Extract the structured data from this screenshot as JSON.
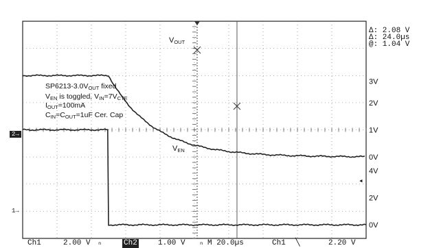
{
  "readout": {
    "delta_v": "Δ: 2.08 V",
    "delta_t": "Δ: 24.0µs",
    "at_v": "@: 1.04 V"
  },
  "status_bar": {
    "ch1": "Ch1",
    "ch1_scale": "2.00 V",
    "ch1_bw": "ₙ",
    "ch2": "Ch2",
    "ch2_scale": "1.00 V",
    "ch2_bw": "ₙ",
    "timebase": "M 20.0µs",
    "trigger_src": "Ch1",
    "trigger_slope": "╲",
    "trigger_level": "2.20 V"
  },
  "markers": {
    "ch2_ground": "2",
    "ch1_ground": "1→",
    "trigger_arrow": "◂"
  },
  "annotation": {
    "line1_main": "SP6213-3.0V",
    "line1_sub": "OUT",
    "line1_tail": " fixed",
    "line2_a": "V",
    "line2_a_sub": "EN",
    "line2_b": " is toggled, V",
    "line2_b_sub": "IN",
    "line2_c": "=7V",
    "line2_c_sub": "CTE",
    "line3_a": "I",
    "line3_a_sub": "OUT",
    "line3_b": "=100mA",
    "line4_a": "C",
    "line4_a_sub": "IN",
    "line4_b": "=C",
    "line4_b_sub": "OUT",
    "line4_c": "=1uF Cer. Cap"
  },
  "trace_labels": {
    "vout": "V",
    "vout_sub": "OUT",
    "ven": "V",
    "ven_sub": "EN"
  },
  "chart_data": {
    "type": "line",
    "title": "",
    "xlabel": "",
    "ylabel": "",
    "time_per_div_us": 20.0,
    "divisions_x": 10,
    "trigger_time_us": 0,
    "xlim_us": [
      -50,
      150
    ],
    "series": [
      {
        "name": "VOUT",
        "channel": "Ch2",
        "volts_per_div": 1.0,
        "y_tick_labels": [
          "3V",
          "2V",
          "1V",
          "0V"
        ],
        "ylim": [
          -2,
          4
        ],
        "points_us_v": [
          [
            -50,
            3.0
          ],
          [
            -5,
            3.0
          ],
          [
            0,
            3.0
          ],
          [
            5,
            2.63
          ],
          [
            10,
            2.34
          ],
          [
            15,
            2.09
          ],
          [
            20,
            1.72
          ],
          [
            24,
            1.04
          ],
          [
            30,
            0.85
          ],
          [
            40,
            0.55
          ],
          [
            50,
            0.36
          ],
          [
            60,
            0.24
          ],
          [
            70,
            0.16
          ],
          [
            80,
            0.1
          ],
          [
            100,
            0.05
          ],
          [
            120,
            0.02
          ],
          [
            150,
            0.0
          ]
        ]
      },
      {
        "name": "VEN",
        "channel": "Ch1",
        "volts_per_div": 2.0,
        "y_tick_labels": [
          "4V",
          "2V",
          "0V"
        ],
        "ylim": [
          -2,
          10
        ],
        "points_us_v": [
          [
            -50,
            7.0
          ],
          [
            -0.5,
            7.0
          ],
          [
            0,
            0.0
          ],
          [
            150,
            0.0
          ]
        ]
      }
    ],
    "cursors": {
      "delta_v": 2.08,
      "delta_t_us": 24.0,
      "at_v": 1.04
    }
  }
}
